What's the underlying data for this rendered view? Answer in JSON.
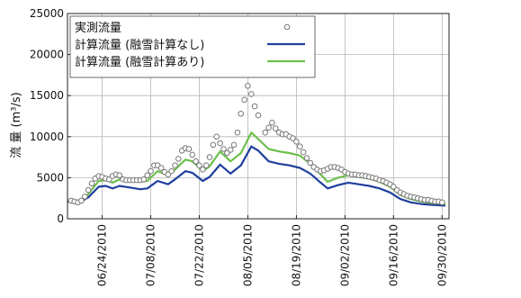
{
  "chart_data": {
    "type": "line",
    "ylabel": "流 量 (m³/s)",
    "ylim": [
      0,
      25000
    ],
    "yticks": [
      0,
      5000,
      10000,
      15000,
      20000,
      25000
    ],
    "xlim": [
      "2010-06-14",
      "2010-10-02"
    ],
    "x_tick_labels": [
      "06/24/2010",
      "07/08/2010",
      "07/22/2010",
      "08/05/2010",
      "08/19/2010",
      "09/02/2010",
      "09/16/2010",
      "09/30/2010"
    ],
    "grid": true,
    "legend_position": "top-left",
    "series": [
      {
        "name": "実測流量",
        "style": "markers",
        "marker": "open-circle",
        "color": "#777777",
        "points": [
          [
            "2010-06-15",
            2200
          ],
          [
            "2010-06-16",
            2100
          ],
          [
            "2010-06-17",
            2000
          ],
          [
            "2010-06-18",
            2200
          ],
          [
            "2010-06-19",
            2700
          ],
          [
            "2010-06-20",
            3500
          ],
          [
            "2010-06-21",
            4300
          ],
          [
            "2010-06-22",
            4900
          ],
          [
            "2010-06-23",
            5200
          ],
          [
            "2010-06-24",
            5100
          ],
          [
            "2010-06-25",
            4900
          ],
          [
            "2010-06-26",
            4800
          ],
          [
            "2010-06-27",
            5200
          ],
          [
            "2010-06-28",
            5400
          ],
          [
            "2010-06-29",
            5300
          ],
          [
            "2010-06-30",
            4800
          ],
          [
            "2010-07-01",
            4700
          ],
          [
            "2010-07-02",
            4700
          ],
          [
            "2010-07-03",
            4700
          ],
          [
            "2010-07-04",
            4700
          ],
          [
            "2010-07-05",
            4700
          ],
          [
            "2010-07-06",
            4800
          ],
          [
            "2010-07-07",
            5300
          ],
          [
            "2010-07-08",
            5800
          ],
          [
            "2010-07-09",
            6500
          ],
          [
            "2010-07-10",
            6500
          ],
          [
            "2010-07-11",
            6200
          ],
          [
            "2010-07-12",
            5700
          ],
          [
            "2010-07-13",
            5400
          ],
          [
            "2010-07-14",
            5800
          ],
          [
            "2010-07-15",
            6500
          ],
          [
            "2010-07-16",
            7300
          ],
          [
            "2010-07-17",
            8300
          ],
          [
            "2010-07-18",
            8600
          ],
          [
            "2010-07-19",
            8500
          ],
          [
            "2010-07-20",
            7800
          ],
          [
            "2010-07-21",
            7000
          ],
          [
            "2010-07-22",
            6500
          ],
          [
            "2010-07-23",
            6000
          ],
          [
            "2010-07-24",
            6500
          ],
          [
            "2010-07-25",
            7500
          ],
          [
            "2010-07-26",
            9000
          ],
          [
            "2010-07-27",
            10000
          ],
          [
            "2010-07-28",
            9200
          ],
          [
            "2010-07-29",
            8500
          ],
          [
            "2010-07-30",
            8000
          ],
          [
            "2010-07-31",
            8400
          ],
          [
            "2010-08-01",
            9000
          ],
          [
            "2010-08-02",
            10500
          ],
          [
            "2010-08-03",
            12800
          ],
          [
            "2010-08-04",
            14500
          ],
          [
            "2010-08-05",
            16200
          ],
          [
            "2010-08-06",
            15200
          ],
          [
            "2010-08-07",
            13700
          ],
          [
            "2010-08-08",
            12600
          ],
          [
            "2010-08-09",
            23000
          ],
          [
            "2010-08-10",
            10500
          ],
          [
            "2010-08-11",
            11100
          ],
          [
            "2010-08-12",
            11700
          ],
          [
            "2010-08-13",
            11000
          ],
          [
            "2010-08-14",
            10500
          ],
          [
            "2010-08-15",
            10300
          ],
          [
            "2010-08-16",
            10300
          ],
          [
            "2010-08-17",
            10000
          ],
          [
            "2010-08-18",
            9800
          ],
          [
            "2010-08-19",
            9400
          ],
          [
            "2010-08-20",
            8800
          ],
          [
            "2010-08-21",
            8100
          ],
          [
            "2010-08-22",
            7400
          ],
          [
            "2010-08-23",
            6800
          ],
          [
            "2010-08-24",
            6300
          ],
          [
            "2010-08-25",
            6000
          ],
          [
            "2010-08-26",
            5800
          ],
          [
            "2010-08-27",
            5900
          ],
          [
            "2010-08-28",
            6100
          ],
          [
            "2010-08-29",
            6300
          ],
          [
            "2010-08-30",
            6300
          ],
          [
            "2010-08-31",
            6200
          ],
          [
            "2010-09-01",
            6000
          ],
          [
            "2010-09-02",
            5700
          ],
          [
            "2010-09-03",
            5500
          ],
          [
            "2010-09-04",
            5400
          ],
          [
            "2010-09-05",
            5400
          ],
          [
            "2010-09-06",
            5300
          ],
          [
            "2010-09-07",
            5300
          ],
          [
            "2010-09-08",
            5200
          ],
          [
            "2010-09-09",
            5100
          ],
          [
            "2010-09-10",
            5000
          ],
          [
            "2010-09-11",
            4900
          ],
          [
            "2010-09-12",
            4700
          ],
          [
            "2010-09-13",
            4600
          ],
          [
            "2010-09-14",
            4400
          ],
          [
            "2010-09-15",
            4200
          ],
          [
            "2010-09-16",
            3900
          ],
          [
            "2010-09-17",
            3500
          ],
          [
            "2010-09-18",
            3200
          ],
          [
            "2010-09-19",
            3000
          ],
          [
            "2010-09-20",
            2800
          ],
          [
            "2010-09-21",
            2700
          ],
          [
            "2010-09-22",
            2600
          ],
          [
            "2010-09-23",
            2500
          ],
          [
            "2010-09-24",
            2400
          ],
          [
            "2010-09-25",
            2300
          ],
          [
            "2010-09-26",
            2300
          ],
          [
            "2010-09-27",
            2200
          ],
          [
            "2010-09-28",
            2100
          ],
          [
            "2010-09-29",
            2100
          ],
          [
            "2010-09-30",
            2000
          ]
        ]
      },
      {
        "name": "計算流量 (融雪計算なし)",
        "style": "line",
        "color": "#1f3f9e",
        "points": [
          [
            "2010-06-14",
            2100
          ],
          [
            "2010-06-17",
            1900
          ],
          [
            "2010-06-20",
            2600
          ],
          [
            "2010-06-23",
            3900
          ],
          [
            "2010-06-25",
            4000
          ],
          [
            "2010-06-27",
            3700
          ],
          [
            "2010-06-29",
            4000
          ],
          [
            "2010-07-02",
            3800
          ],
          [
            "2010-07-05",
            3600
          ],
          [
            "2010-07-07",
            3700
          ],
          [
            "2010-07-10",
            4600
          ],
          [
            "2010-07-13",
            4200
          ],
          [
            "2010-07-15",
            4800
          ],
          [
            "2010-07-18",
            5800
          ],
          [
            "2010-07-20",
            5600
          ],
          [
            "2010-07-23",
            4600
          ],
          [
            "2010-07-25",
            5100
          ],
          [
            "2010-07-28",
            6600
          ],
          [
            "2010-07-31",
            5500
          ],
          [
            "2010-08-03",
            6500
          ],
          [
            "2010-08-06",
            8800
          ],
          [
            "2010-08-08",
            8300
          ],
          [
            "2010-08-11",
            7000
          ],
          [
            "2010-08-14",
            6700
          ],
          [
            "2010-08-17",
            6500
          ],
          [
            "2010-08-20",
            6200
          ],
          [
            "2010-08-23",
            5500
          ],
          [
            "2010-08-26",
            4400
          ],
          [
            "2010-08-28",
            3700
          ],
          [
            "2010-08-31",
            4100
          ],
          [
            "2010-09-03",
            4400
          ],
          [
            "2010-09-06",
            4200
          ],
          [
            "2010-09-09",
            4000
          ],
          [
            "2010-09-12",
            3700
          ],
          [
            "2010-09-15",
            3200
          ],
          [
            "2010-09-18",
            2400
          ],
          [
            "2010-09-21",
            2000
          ],
          [
            "2010-09-24",
            1800
          ],
          [
            "2010-09-27",
            1700
          ],
          [
            "2010-10-01",
            1600
          ]
        ]
      },
      {
        "name": "計算流量 (融雪計算あり)",
        "style": "line",
        "color": "#6cc04a",
        "points": [
          [
            "2010-06-14",
            2200
          ],
          [
            "2010-06-17",
            2000
          ],
          [
            "2010-06-20",
            3000
          ],
          [
            "2010-06-23",
            4600
          ],
          [
            "2010-06-25",
            4700
          ],
          [
            "2010-06-27",
            4400
          ],
          [
            "2010-06-29",
            4800
          ],
          [
            "2010-07-02",
            4600
          ],
          [
            "2010-07-05",
            4500
          ],
          [
            "2010-07-07",
            4600
          ],
          [
            "2010-07-10",
            5800
          ],
          [
            "2010-07-13",
            5300
          ],
          [
            "2010-07-15",
            6000
          ],
          [
            "2010-07-18",
            7200
          ],
          [
            "2010-07-20",
            7000
          ],
          [
            "2010-07-23",
            5800
          ],
          [
            "2010-07-25",
            6400
          ],
          [
            "2010-07-28",
            8200
          ],
          [
            "2010-07-31",
            7000
          ],
          [
            "2010-08-03",
            8000
          ],
          [
            "2010-08-06",
            10500
          ],
          [
            "2010-08-08",
            9700
          ],
          [
            "2010-08-11",
            8500
          ],
          [
            "2010-08-14",
            8200
          ],
          [
            "2010-08-17",
            8000
          ],
          [
            "2010-08-20",
            7700
          ],
          [
            "2010-08-23",
            6700
          ],
          [
            "2010-08-26",
            5400
          ],
          [
            "2010-08-28",
            4500
          ],
          [
            "2010-08-31",
            5000
          ],
          [
            "2010-09-03",
            5300
          ],
          [
            "2010-09-06",
            5100
          ],
          [
            "2010-09-09",
            4900
          ],
          [
            "2010-09-12",
            4500
          ],
          [
            "2010-09-15",
            3900
          ],
          [
            "2010-09-18",
            2900
          ],
          [
            "2010-09-21",
            2400
          ],
          [
            "2010-09-24",
            2100
          ],
          [
            "2010-09-27",
            1900
          ],
          [
            "2010-10-01",
            1800
          ]
        ]
      }
    ]
  }
}
